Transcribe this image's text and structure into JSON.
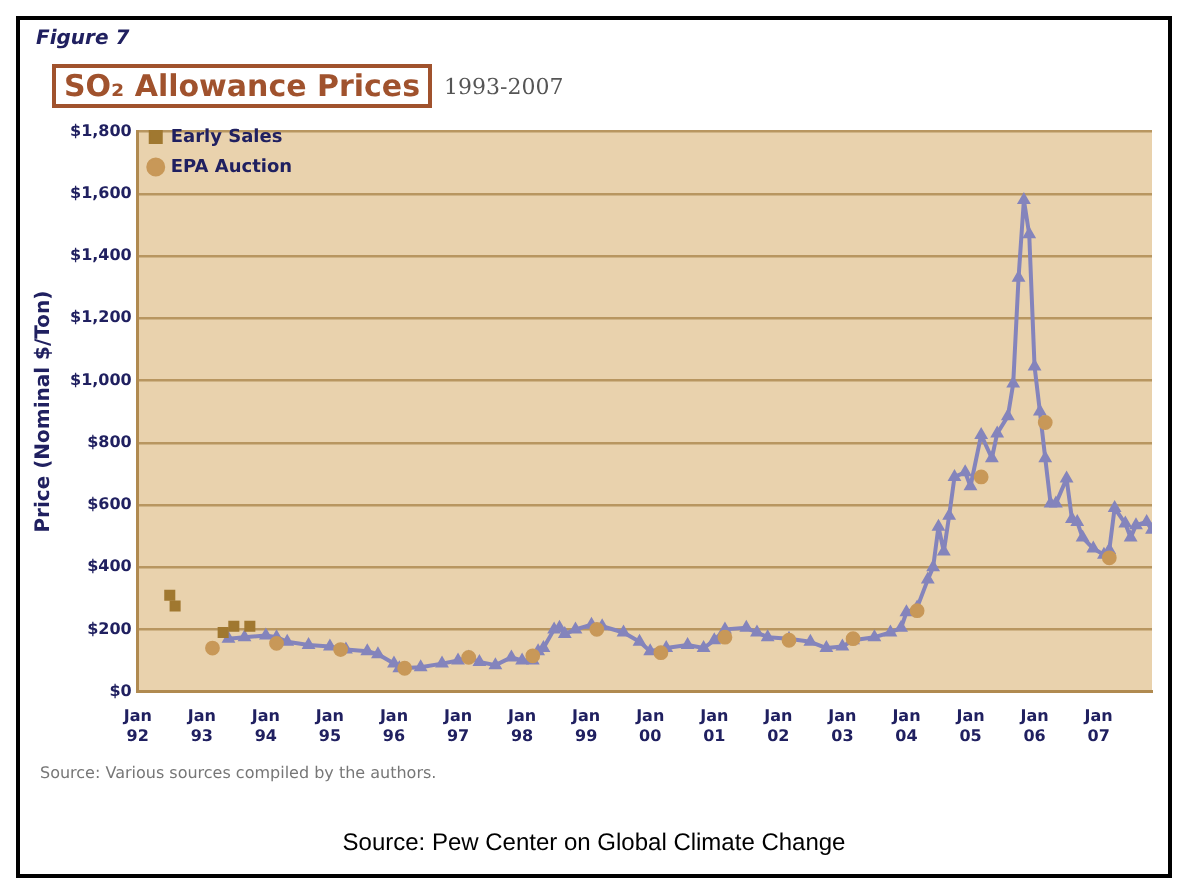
{
  "chart_data": {
    "type": "line",
    "title": "SO₂ Allowance Prices",
    "subtitle": "1993-2007",
    "ylabel": "Price (Nominal $/Ton)",
    "annotations": [
      "Figure 7",
      "Source: Various sources compiled by the authors.",
      "Source: Pew Center on Global Climate Change"
    ],
    "xlim": [
      "1992-01",
      "2007-11"
    ],
    "xticks": [
      {
        "value": "1992-01",
        "label": "Jan 92"
      },
      {
        "value": "1993-01",
        "label": "Jan 93"
      },
      {
        "value": "1994-01",
        "label": "Jan 94"
      },
      {
        "value": "1995-01",
        "label": "Jan 95"
      },
      {
        "value": "1996-01",
        "label": "Jan 96"
      },
      {
        "value": "1997-01",
        "label": "Jan 97"
      },
      {
        "value": "1998-01",
        "label": "Jan 98"
      },
      {
        "value": "1999-01",
        "label": "Jan 99"
      },
      {
        "value": "2000-01",
        "label": "Jan 00"
      },
      {
        "value": "2001-01",
        "label": "Jan 01"
      },
      {
        "value": "2002-01",
        "label": "Jan 02"
      },
      {
        "value": "2003-01",
        "label": "Jan 03"
      },
      {
        "value": "2004-01",
        "label": "Jan 04"
      },
      {
        "value": "2005-01",
        "label": "Jan 05"
      },
      {
        "value": "2006-01",
        "label": "Jan 06"
      },
      {
        "value": "2007-01",
        "label": "Jan 07"
      }
    ],
    "ylim": [
      0,
      1800
    ],
    "yticks": [
      {
        "value": 0,
        "label": "$0"
      },
      {
        "value": 200,
        "label": "$200"
      },
      {
        "value": 400,
        "label": "$400"
      },
      {
        "value": 600,
        "label": "$600"
      },
      {
        "value": 800,
        "label": "$800"
      },
      {
        "value": 1000,
        "label": "$1,000"
      },
      {
        "value": 1200,
        "label": "$1,200"
      },
      {
        "value": 1400,
        "label": "$1,400"
      },
      {
        "value": 1600,
        "label": "$1,600"
      },
      {
        "value": 1800,
        "label": "$1,800"
      }
    ],
    "grid": "y",
    "legend": "top left",
    "series": [
      {
        "name": "Early Sales",
        "type": "scatter",
        "marker": "square",
        "color": "#a07830",
        "x": [
          "1992-07",
          "1992-08",
          "1993-05",
          "1993-07",
          "1993-10"
        ],
        "values": [
          310,
          275,
          190,
          210,
          210
        ]
      },
      {
        "type": "line",
        "marker": "triangle",
        "color": "#8484bc",
        "x": [
          "1993-06",
          "1993-09",
          "1994-01",
          "1994-03",
          "1994-05",
          "1994-09",
          "1995-01",
          "1995-04",
          "1995-08",
          "1995-10",
          "1996-01",
          "1996-02",
          "1996-06",
          "1996-10",
          "1997-01",
          "1997-03",
          "1997-05",
          "1997-08",
          "1997-11",
          "1998-01",
          "1998-03",
          "1998-04",
          "1998-05",
          "1998-07",
          "1998-08",
          "1998-09",
          "1998-11",
          "1999-02",
          "1999-04",
          "1999-08",
          "1999-11",
          "2000-01",
          "2000-04",
          "2000-08",
          "2000-11",
          "2001-01",
          "2001-03",
          "2001-07",
          "2001-09",
          "2001-11",
          "2002-03",
          "2002-07",
          "2002-10",
          "2003-01",
          "2003-03",
          "2003-07",
          "2003-10",
          "2003-12",
          "2004-01",
          "2004-03",
          "2004-05",
          "2004-06",
          "2004-07",
          "2004-08",
          "2004-09",
          "2004-10",
          "2004-12",
          "2005-01",
          "2005-03",
          "2005-05",
          "2005-06",
          "2005-08",
          "2005-09",
          "2005-10",
          "2005-11",
          "2005-12",
          "2006-01",
          "2006-02",
          "2006-03",
          "2006-04",
          "2006-05",
          "2006-07",
          "2006-08",
          "2006-09",
          "2006-10",
          "2006-12",
          "2007-02",
          "2007-03",
          "2007-04",
          "2007-06",
          "2007-07",
          "2007-08",
          "2007-10",
          "2007-11"
        ],
        "values": [
          170,
          175,
          180,
          175,
          160,
          150,
          145,
          135,
          130,
          120,
          90,
          75,
          78,
          90,
          100,
          110,
          95,
          85,
          110,
          100,
          100,
          130,
          140,
          200,
          205,
          185,
          200,
          215,
          210,
          190,
          160,
          130,
          140,
          150,
          140,
          165,
          200,
          205,
          190,
          175,
          170,
          160,
          140,
          145,
          165,
          175,
          190,
          205,
          255,
          270,
          360,
          400,
          530,
          450,
          565,
          690,
          705,
          660,
          825,
          750,
          830,
          885,
          990,
          1330,
          1580,
          1470,
          1045,
          900,
          750,
          605,
          605,
          685,
          555,
          545,
          495,
          460,
          440,
          455,
          590,
          540,
          495,
          535,
          545,
          520
        ]
      },
      {
        "name": "EPA Auction",
        "type": "scatter",
        "marker": "circle",
        "color": "#c89858",
        "x": [
          "1993-03",
          "1994-03",
          "1995-03",
          "1996-03",
          "1997-03",
          "1998-03",
          "1999-03",
          "2000-03",
          "2001-03",
          "2002-03",
          "2003-03",
          "2004-03",
          "2005-03",
          "2006-03",
          "2007-03"
        ],
        "values": [
          140,
          155,
          135,
          75,
          110,
          115,
          200,
          125,
          175,
          165,
          170,
          260,
          690,
          865,
          430
        ]
      }
    ]
  }
}
